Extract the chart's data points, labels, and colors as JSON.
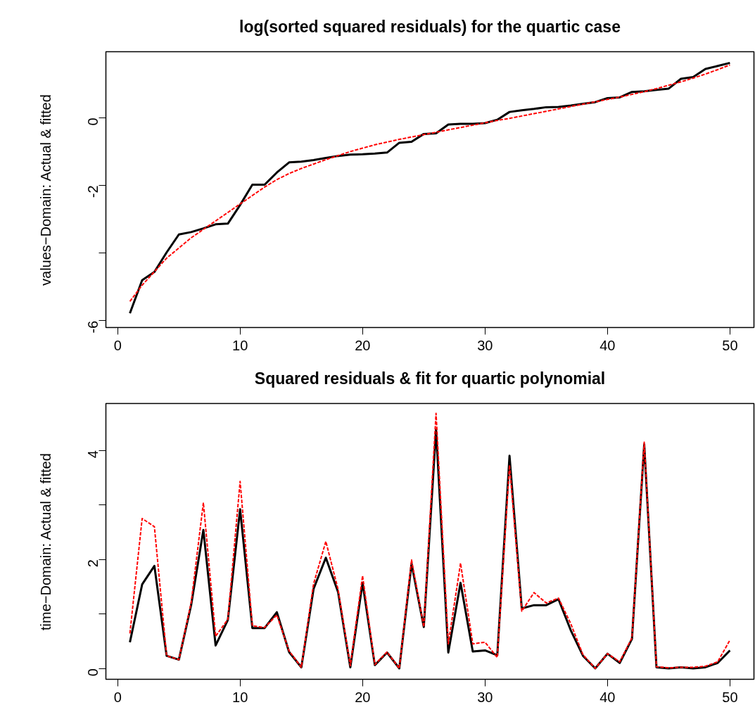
{
  "chart_data": [
    {
      "type": "line",
      "title": "log(sorted squared residuals) for the quartic case",
      "ylabel": "values−Domain: Actual & fitted",
      "x": [
        1,
        2,
        3,
        4,
        5,
        6,
        7,
        8,
        9,
        10,
        11,
        12,
        13,
        14,
        15,
        16,
        17,
        18,
        19,
        20,
        21,
        22,
        23,
        24,
        25,
        26,
        27,
        28,
        29,
        30,
        31,
        32,
        33,
        34,
        35,
        36,
        37,
        38,
        39,
        40,
        41,
        42,
        43,
        44,
        45,
        46,
        47,
        48,
        49,
        50
      ],
      "xlim": [
        -0.96,
        51.96
      ],
      "ylim": [
        -6.2,
        1.95
      ],
      "xticks": [
        0,
        10,
        20,
        30,
        40,
        50
      ],
      "yticks": [
        -6,
        {
          "value": -4,
          "label": null
        },
        -2,
        0
      ],
      "grid": false,
      "marker": "none",
      "series": [
        {
          "color": "#000000",
          "line_style": "solid",
          "values": [
            -5.78,
            -4.8,
            -4.56,
            -3.98,
            -3.45,
            -3.38,
            -3.27,
            -3.15,
            -3.13,
            -2.58,
            -1.98,
            -1.98,
            -1.62,
            -1.32,
            -1.3,
            -1.25,
            -1.19,
            -1.13,
            -1.09,
            -1.08,
            -1.06,
            -1.03,
            -0.74,
            -0.71,
            -0.48,
            -0.46,
            -0.2,
            -0.18,
            -0.18,
            -0.16,
            -0.06,
            0.17,
            0.22,
            0.26,
            0.31,
            0.32,
            0.36,
            0.41,
            0.46,
            0.58,
            0.6,
            0.76,
            0.78,
            0.82,
            0.86,
            1.15,
            1.2,
            1.44,
            1.53,
            1.62
          ]
        },
        {
          "color": "#ff0000",
          "line_style": "dashed",
          "values": [
            -5.43,
            -4.95,
            -4.55,
            -4.15,
            -3.85,
            -3.55,
            -3.3,
            -3.05,
            -2.8,
            -2.55,
            -2.3,
            -2.05,
            -1.83,
            -1.65,
            -1.5,
            -1.37,
            -1.24,
            -1.12,
            -1.0,
            -0.9,
            -0.8,
            -0.72,
            -0.64,
            -0.57,
            -0.5,
            -0.43,
            -0.36,
            -0.29,
            -0.22,
            -0.15,
            -0.08,
            -0.02,
            0.05,
            0.12,
            0.19,
            0.26,
            0.33,
            0.4,
            0.47,
            0.54,
            0.61,
            0.69,
            0.77,
            0.86,
            0.96,
            1.06,
            1.17,
            1.29,
            1.42,
            1.56
          ]
        }
      ]
    },
    {
      "type": "line",
      "title": "Squared residuals & fit for quartic polynomial",
      "ylabel": "time−Domain: Actual & fitted",
      "x": [
        1,
        2,
        3,
        4,
        5,
        6,
        7,
        8,
        9,
        10,
        11,
        12,
        13,
        14,
        15,
        16,
        17,
        18,
        19,
        20,
        21,
        22,
        23,
        24,
        25,
        26,
        27,
        28,
        29,
        30,
        31,
        32,
        33,
        34,
        35,
        36,
        37,
        38,
        39,
        40,
        41,
        42,
        43,
        44,
        45,
        46,
        47,
        48,
        49,
        50
      ],
      "xlim": [
        -0.96,
        51.96
      ],
      "ylim": [
        -0.2,
        4.86
      ],
      "xticks": [
        0,
        10,
        20,
        30,
        40,
        50
      ],
      "yticks": [
        0,
        {
          "value": 1,
          "label": null
        },
        2,
        {
          "value": 3,
          "label": null
        },
        4
      ],
      "grid": false,
      "marker": "none",
      "series": [
        {
          "color": "#000000",
          "line_style": "solid",
          "values": [
            0.48,
            1.54,
            1.88,
            0.23,
            0.16,
            1.16,
            2.54,
            0.42,
            0.89,
            2.92,
            0.74,
            0.74,
            1.03,
            0.3,
            0.02,
            1.46,
            2.03,
            1.4,
            0.02,
            1.57,
            0.06,
            0.29,
            0.0,
            1.92,
            0.76,
            4.38,
            0.29,
            1.57,
            0.31,
            0.33,
            0.24,
            3.9,
            1.1,
            1.16,
            1.16,
            1.27,
            0.7,
            0.23,
            0.0,
            0.27,
            0.1,
            0.54,
            4.11,
            0.02,
            0.0,
            0.02,
            0.0,
            0.02,
            0.1,
            0.33
          ]
        },
        {
          "color": "#ff0000",
          "line_style": "dashed",
          "values": [
            0.64,
            2.75,
            2.6,
            0.23,
            0.16,
            1.2,
            3.04,
            0.59,
            0.9,
            3.43,
            0.78,
            0.75,
            0.98,
            0.32,
            0.02,
            1.55,
            2.33,
            1.45,
            0.05,
            1.7,
            0.07,
            0.3,
            0.0,
            1.99,
            0.76,
            4.68,
            0.45,
            1.93,
            0.45,
            0.48,
            0.2,
            3.73,
            1.05,
            1.39,
            1.2,
            1.29,
            0.82,
            0.25,
            0.0,
            0.27,
            0.12,
            0.56,
            4.15,
            0.03,
            0.01,
            0.02,
            0.02,
            0.04,
            0.12,
            0.52
          ]
        }
      ]
    }
  ]
}
